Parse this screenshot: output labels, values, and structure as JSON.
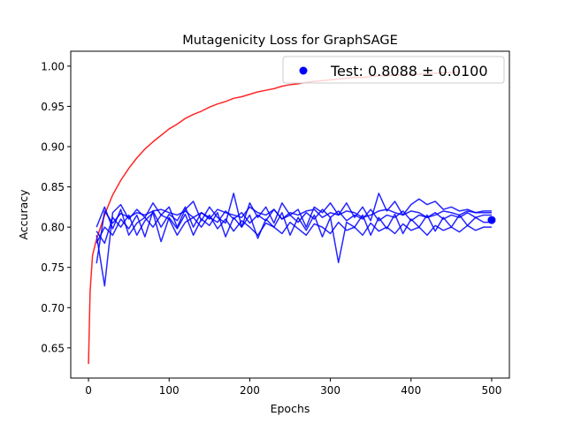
{
  "chart_data": {
    "type": "line",
    "title": "Mutagenicity Loss for GraphSAGE",
    "xlabel": "Epochs",
    "ylabel": "Accuracy",
    "xlim": [
      -22,
      522
    ],
    "ylim": [
      0.6125,
      1.0185
    ],
    "xticks": [
      0,
      100,
      200,
      300,
      400,
      500
    ],
    "xtick_labels": [
      "0",
      "100",
      "200",
      "300",
      "400",
      "500"
    ],
    "yticks": [
      0.65,
      0.7,
      0.75,
      0.8,
      0.85,
      0.9,
      0.95,
      1.0
    ],
    "ytick_labels": [
      "0.65",
      "0.70",
      "0.75",
      "0.80",
      "0.85",
      "0.90",
      "0.95",
      "1.00"
    ],
    "grid": false,
    "legend": {
      "location": "top-right",
      "label": "Test: 0.8088 ± 0.0100",
      "color": "#0000ff"
    },
    "test_point": {
      "x": 500,
      "y": 0.8088
    },
    "colors": {
      "train": "#ff0000",
      "validation": "#0000ff"
    },
    "series": [
      {
        "role": "train",
        "x": [
          0,
          2,
          5,
          10,
          15,
          20,
          25,
          30,
          40,
          50,
          60,
          70,
          80,
          90,
          100,
          110,
          120,
          130,
          140,
          150,
          160,
          170,
          180,
          190,
          200,
          210,
          220,
          230,
          240,
          250,
          260,
          270,
          280,
          290,
          300,
          310,
          320,
          330,
          340,
          350,
          360,
          370,
          380,
          390,
          400,
          410,
          420,
          430,
          440,
          450,
          460
        ],
        "y": [
          0.63,
          0.72,
          0.765,
          0.785,
          0.8,
          0.815,
          0.828,
          0.84,
          0.858,
          0.873,
          0.886,
          0.897,
          0.906,
          0.914,
          0.922,
          0.928,
          0.935,
          0.94,
          0.944,
          0.949,
          0.953,
          0.956,
          0.96,
          0.962,
          0.965,
          0.968,
          0.97,
          0.972,
          0.975,
          0.977,
          0.978,
          0.98,
          0.981,
          0.982,
          0.983,
          0.984,
          0.985,
          0.986,
          0.986,
          0.987,
          0.988,
          0.988,
          0.989,
          0.989,
          0.99,
          0.99,
          0.991,
          0.991,
          0.992,
          0.992,
          0.993
        ]
      },
      {
        "role": "validation",
        "x": [
          10,
          20,
          30,
          40,
          50,
          60,
          70,
          80,
          90,
          100,
          110,
          120,
          130,
          140,
          150,
          160,
          170,
          180,
          190,
          200,
          210,
          220,
          230,
          240,
          250,
          260,
          270,
          280,
          290,
          300,
          310,
          320,
          330,
          340,
          350,
          360,
          370,
          380,
          390,
          400,
          410,
          420,
          430,
          440,
          450,
          460,
          470,
          480,
          490,
          500
        ],
        "y": [
          0.755,
          0.82,
          0.805,
          0.817,
          0.812,
          0.818,
          0.815,
          0.82,
          0.822,
          0.818,
          0.815,
          0.82,
          0.812,
          0.818,
          0.81,
          0.822,
          0.818,
          0.815,
          0.812,
          0.825,
          0.818,
          0.815,
          0.822,
          0.81,
          0.818,
          0.815,
          0.82,
          0.822,
          0.812,
          0.818,
          0.815,
          0.82,
          0.818,
          0.812,
          0.815,
          0.82,
          0.822,
          0.818,
          0.815,
          0.82,
          0.818,
          0.812,
          0.815,
          0.82,
          0.818,
          0.815,
          0.82,
          0.818,
          0.818,
          0.818
        ]
      },
      {
        "role": "validation",
        "x": [
          10,
          20,
          30,
          40,
          50,
          60,
          70,
          80,
          90,
          100,
          110,
          120,
          130,
          140,
          150,
          160,
          170,
          180,
          190,
          200,
          210,
          220,
          230,
          240,
          250,
          260,
          270,
          280,
          290,
          300,
          310,
          320,
          330,
          340,
          350,
          360,
          370,
          380,
          390,
          400,
          410,
          420,
          430,
          440,
          450,
          460,
          470,
          480,
          490,
          500
        ],
        "y": [
          0.79,
          0.727,
          0.818,
          0.828,
          0.81,
          0.822,
          0.812,
          0.83,
          0.815,
          0.825,
          0.8,
          0.822,
          0.832,
          0.808,
          0.825,
          0.812,
          0.805,
          0.842,
          0.8,
          0.83,
          0.812,
          0.825,
          0.805,
          0.83,
          0.815,
          0.822,
          0.8,
          0.825,
          0.818,
          0.83,
          0.815,
          0.83,
          0.812,
          0.825,
          0.808,
          0.842,
          0.82,
          0.832,
          0.815,
          0.828,
          0.835,
          0.828,
          0.832,
          0.822,
          0.825,
          0.82,
          0.822,
          0.818,
          0.82,
          0.82
        ]
      },
      {
        "role": "validation",
        "x": [
          10,
          20,
          30,
          40,
          50,
          60,
          70,
          80,
          90,
          100,
          110,
          120,
          130,
          140,
          150,
          160,
          170,
          180,
          190,
          200,
          210,
          220,
          230,
          240,
          250,
          260,
          270,
          280,
          290,
          300,
          310,
          320,
          330,
          340,
          350,
          360,
          370,
          380,
          390,
          400,
          410,
          420,
          430,
          440,
          450,
          460,
          470,
          480,
          490,
          500
        ],
        "y": [
          0.8,
          0.825,
          0.798,
          0.822,
          0.79,
          0.805,
          0.812,
          0.8,
          0.815,
          0.81,
          0.79,
          0.806,
          0.812,
          0.8,
          0.815,
          0.798,
          0.81,
          0.795,
          0.808,
          0.8,
          0.79,
          0.805,
          0.8,
          0.792,
          0.806,
          0.798,
          0.79,
          0.804,
          0.8,
          0.792,
          0.806,
          0.796,
          0.8,
          0.79,
          0.805,
          0.795,
          0.8,
          0.792,
          0.804,
          0.796,
          0.8,
          0.79,
          0.802,
          0.796,
          0.8,
          0.794,
          0.802,
          0.796,
          0.8,
          0.8
        ]
      },
      {
        "role": "validation",
        "x": [
          10,
          20,
          30,
          40,
          50,
          60,
          70,
          80,
          90,
          100,
          110,
          120,
          130,
          140,
          150,
          160,
          170,
          180,
          190,
          200,
          210,
          220,
          230,
          240,
          250,
          260,
          270,
          280,
          290,
          300,
          310,
          320,
          330,
          340,
          350,
          360,
          370,
          380,
          390,
          400,
          410,
          420,
          430,
          440,
          450,
          460,
          470,
          480,
          490,
          500
        ],
        "y": [
          0.795,
          0.78,
          0.812,
          0.8,
          0.815,
          0.79,
          0.808,
          0.818,
          0.782,
          0.812,
          0.798,
          0.816,
          0.79,
          0.81,
          0.802,
          0.818,
          0.788,
          0.812,
          0.8,
          0.815,
          0.786,
          0.81,
          0.8,
          0.818,
          0.79,
          0.812,
          0.796,
          0.815,
          0.788,
          0.812,
          0.756,
          0.806,
          0.8,
          0.815,
          0.79,
          0.812,
          0.798,
          0.816,
          0.792,
          0.81,
          0.8,
          0.815,
          0.795,
          0.812,
          0.8,
          0.815,
          0.802,
          0.812,
          0.806,
          0.806
        ]
      },
      {
        "role": "validation",
        "x": [
          10,
          20,
          30,
          40,
          50,
          60,
          70,
          80,
          90,
          100,
          110,
          120,
          130,
          140,
          150,
          160,
          170,
          180,
          190,
          200,
          210,
          220,
          230,
          240,
          250,
          260,
          270,
          280,
          290,
          300,
          310,
          320,
          330,
          340,
          350,
          360,
          370,
          380,
          390,
          400,
          410,
          420,
          430,
          440,
          450,
          460,
          470,
          480,
          490,
          500
        ],
        "y": [
          0.78,
          0.8,
          0.79,
          0.81,
          0.798,
          0.815,
          0.788,
          0.82,
          0.8,
          0.816,
          0.808,
          0.825,
          0.8,
          0.818,
          0.812,
          0.806,
          0.82,
          0.81,
          0.818,
          0.805,
          0.815,
          0.808,
          0.822,
          0.81,
          0.815,
          0.806,
          0.818,
          0.81,
          0.822,
          0.812,
          0.82,
          0.808,
          0.815,
          0.81,
          0.822,
          0.808,
          0.815,
          0.812,
          0.82,
          0.808,
          0.815,
          0.812,
          0.818,
          0.81,
          0.815,
          0.812,
          0.818,
          0.812,
          0.815,
          0.815
        ]
      }
    ]
  }
}
